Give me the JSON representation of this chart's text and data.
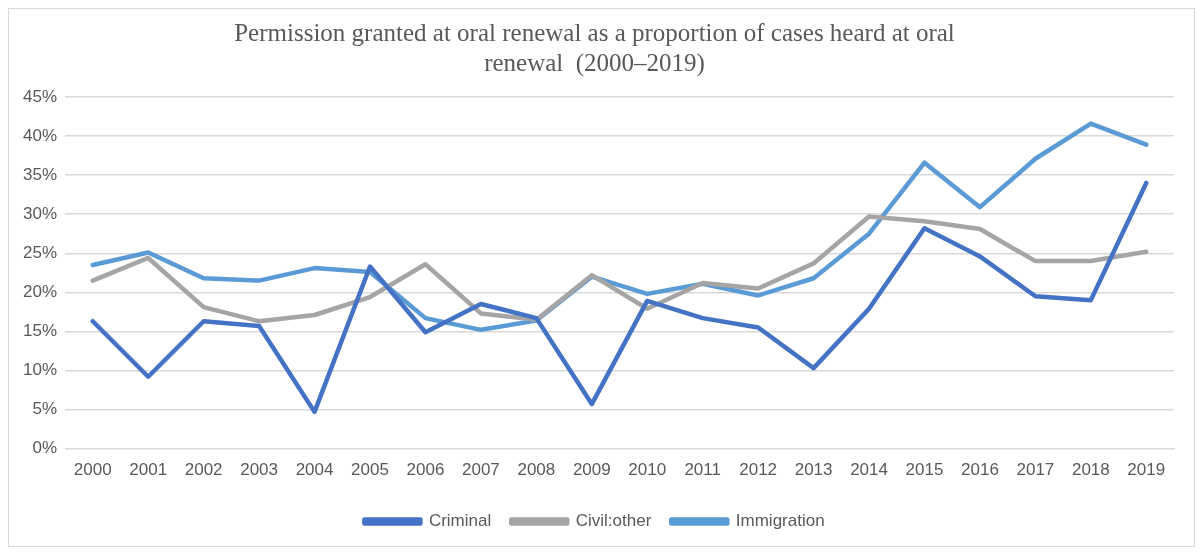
{
  "chart_data": {
    "type": "line",
    "title": "Permission granted at oral renewal as a proportion of cases heard at oral renewal  (2000–2019)",
    "categories": [
      "2000",
      "2001",
      "2002",
      "2003",
      "2004",
      "2005",
      "2006",
      "2007",
      "2008",
      "2009",
      "2010",
      "2011",
      "2012",
      "2013",
      "2014",
      "2015",
      "2016",
      "2017",
      "2018",
      "2019"
    ],
    "series": [
      {
        "name": "Criminal",
        "color": "#4472c4",
        "values": [
          16.3,
          9.2,
          16.3,
          15.7,
          4.7,
          23.3,
          14.9,
          18.5,
          16.7,
          5.7,
          18.9,
          16.7,
          15.5,
          10.3,
          17.9,
          28.2,
          24.6,
          19.5,
          19.0,
          34.0
        ]
      },
      {
        "name": "Civil:other",
        "color": "#a5a5a5",
        "values": [
          21.5,
          24.4,
          18.1,
          16.3,
          17.1,
          19.4,
          23.6,
          17.3,
          16.5,
          22.2,
          17.9,
          21.2,
          20.5,
          23.7,
          29.7,
          29.1,
          28.1,
          24.0,
          24.0,
          25.2
        ]
      },
      {
        "name": "Immigration",
        "color": "#5b9bd5",
        "values": [
          23.5,
          25.1,
          21.8,
          21.5,
          23.1,
          22.6,
          16.7,
          15.2,
          16.4,
          22.0,
          19.8,
          21.1,
          19.6,
          21.8,
          27.5,
          36.6,
          30.9,
          37.1,
          41.6,
          38.9
        ]
      }
    ],
    "ylim": [
      0,
      45
    ],
    "yticks": [
      {
        "value": 0,
        "label": "0%"
      },
      {
        "value": 5,
        "label": "5%"
      },
      {
        "value": 10,
        "label": "10%"
      },
      {
        "value": 15,
        "label": "15%"
      },
      {
        "value": 20,
        "label": "20%"
      },
      {
        "value": 25,
        "label": "25%"
      },
      {
        "value": 30,
        "label": "30%"
      },
      {
        "value": 35,
        "label": "35%"
      },
      {
        "value": 40,
        "label": "40%"
      },
      {
        "value": 45,
        "label": "45%"
      }
    ],
    "grid": "y",
    "legend": "bottom",
    "marker": "none",
    "line_style": "solid"
  }
}
